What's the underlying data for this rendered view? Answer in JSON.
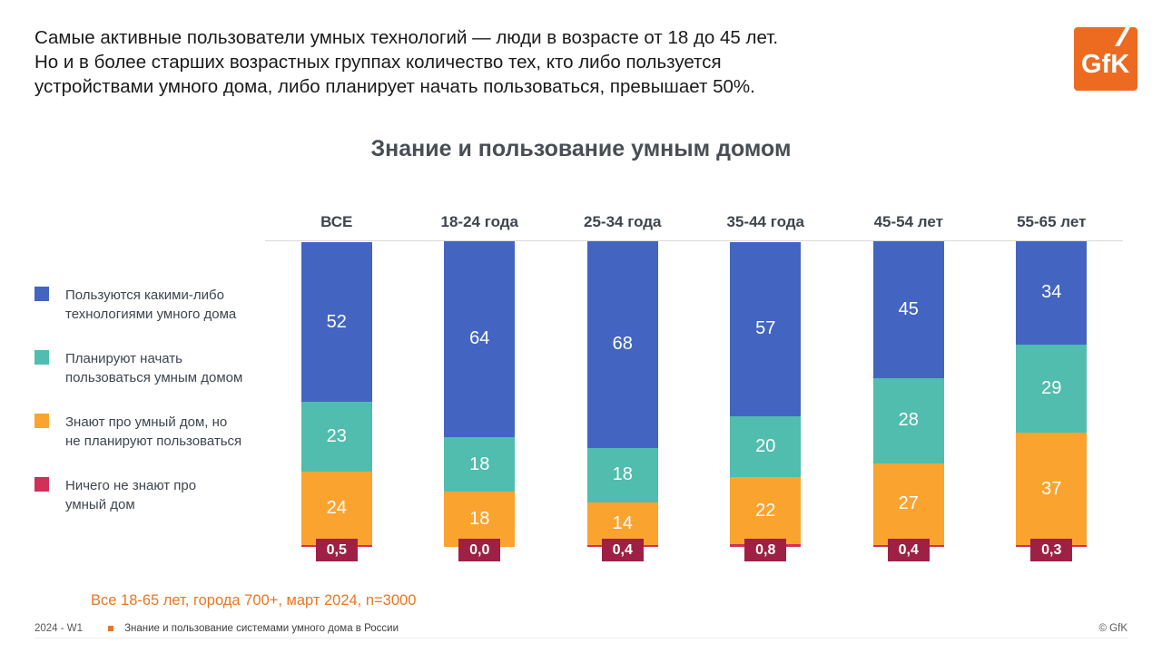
{
  "header": {
    "lines": [
      "Самые активные пользователи умных технологий — люди в возрасте от 18 до 45 лет.",
      "Но и в более старших возрастных группах количество тех, кто либо пользуется",
      "устройствами умного дома, либо планирует начать пользоваться, превышает 50%."
    ],
    "logo_text": "GfK",
    "logo_color": "#ed6b21"
  },
  "chart_data": {
    "type": "bar",
    "stacked": true,
    "title": "Знание и пользование умным домом",
    "unit": "%",
    "ylim": [
      0,
      100
    ],
    "grid": "top-line-only",
    "legend_position": "left",
    "categories": [
      "ВСЕ",
      "18-24 года",
      "25-34 года",
      "35-44 года",
      "45-54 лет",
      "55-65 лет"
    ],
    "series": [
      {
        "name": "Пользуются какими-либо\nтехнологиями умного дома",
        "color": "#4365c1",
        "values": [
          52,
          64,
          68,
          57,
          45,
          34
        ]
      },
      {
        "name": "Планируют начать\nпользоваться умным домом",
        "color": "#50bdae",
        "values": [
          23,
          18,
          18,
          20,
          28,
          29
        ]
      },
      {
        "name": "Знают про умный дом, но\nне планируют пользоваться",
        "color": "#fba32f",
        "values": [
          24,
          18,
          14,
          22,
          27,
          37
        ]
      },
      {
        "name": "Ничего не знают про\nумный дом",
        "color": "#d23058",
        "values": [
          0.5,
          0.0,
          0.4,
          0.8,
          0.4,
          0.3
        ],
        "value_labels": [
          "0,5",
          "0,0",
          "0,4",
          "0,8",
          "0,4",
          "0,3"
        ],
        "label_style": "badge",
        "badge_color": "#9e2145"
      }
    ]
  },
  "footnote": "Все 18-65 лет, города 700+, март 2024, n=3000",
  "footer": {
    "wave": "2024 - W1",
    "title": "Знание и пользование системами умного дома в России",
    "copyright": "© GfK"
  }
}
